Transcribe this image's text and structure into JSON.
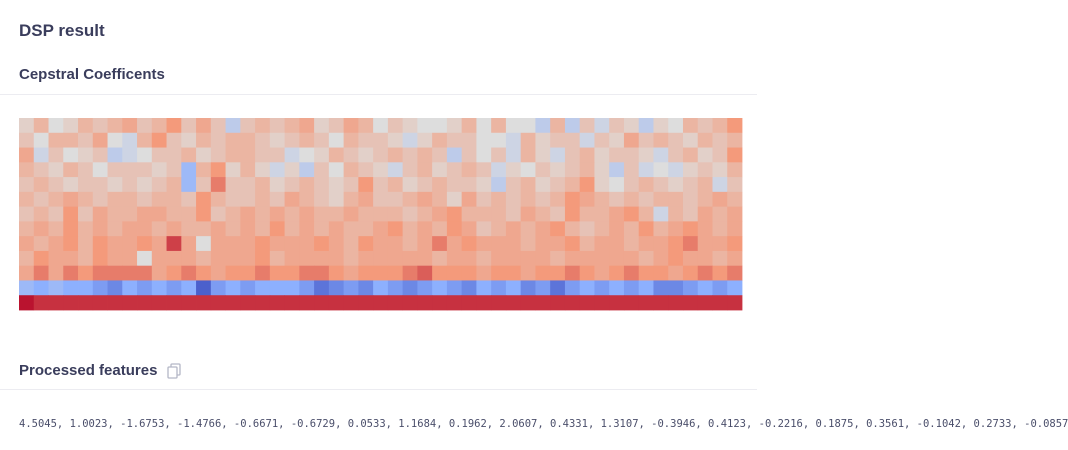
{
  "page": {
    "title": "DSP result"
  },
  "cepstral": {
    "title": "Cepstral Coefficents"
  },
  "features": {
    "title": "Processed features",
    "copy_icon": "copy-icon",
    "values_text": "4.5045, 1.0023, -1.6753, -1.4766, -0.6671, -0.6729, 0.0533, 1.1684, 0.1962, 2.0607, 0.4331, 1.3107, -0.3946, 0.4123, -0.2216, 0.1875, 0.3561, -0.1042, 0.2733, -0.0857"
  },
  "chart_data": {
    "type": "heatmap",
    "colormap": "coolwarm",
    "rows": 13,
    "cols": 49,
    "value_range": [
      -1,
      1
    ],
    "values": [
      [
        0.1,
        0.3,
        0.0,
        0.1,
        0.3,
        0.2,
        0.3,
        0.4,
        0.2,
        0.3,
        0.5,
        0.2,
        0.4,
        0.2,
        -0.2,
        0.2,
        0.3,
        0.2,
        0.3,
        0.4,
        0.1,
        0.2,
        0.4,
        0.3,
        0.0,
        0.2,
        0.1,
        0.0,
        0.0,
        0.1,
        0.3,
        0.0,
        0.3,
        0.0,
        0.0,
        -0.2,
        0.3,
        -0.2,
        0.2,
        -0.1,
        0.2,
        0.1,
        -0.2,
        0.1,
        0.0,
        0.3,
        0.2,
        0.3,
        0.5
      ],
      [
        0.2,
        0.0,
        0.3,
        0.3,
        0.2,
        0.4,
        0.0,
        -0.1,
        0.3,
        0.5,
        0.2,
        0.1,
        0.3,
        0.2,
        0.3,
        0.3,
        0.2,
        0.1,
        0.2,
        0.3,
        0.2,
        0.0,
        0.3,
        0.2,
        0.2,
        0.1,
        -0.1,
        0.1,
        0.3,
        0.2,
        0.2,
        0.0,
        0.0,
        -0.1,
        0.3,
        0.1,
        0.2,
        0.2,
        -0.1,
        0.2,
        0.1,
        0.4,
        0.2,
        0.3,
        0.2,
        0.1,
        0.3,
        0.2,
        0.3
      ],
      [
        0.4,
        -0.1,
        0.2,
        0.0,
        0.1,
        0.2,
        -0.2,
        -0.1,
        0.0,
        0.2,
        0.2,
        0.3,
        0.1,
        0.2,
        0.3,
        0.3,
        0.2,
        0.2,
        -0.1,
        0.0,
        0.1,
        0.3,
        0.2,
        0.1,
        0.2,
        0.3,
        0.2,
        0.3,
        0.2,
        -0.2,
        0.2,
        0.0,
        0.2,
        -0.1,
        0.3,
        0.1,
        -0.1,
        0.2,
        0.3,
        0.1,
        0.2,
        0.2,
        0.1,
        -0.1,
        0.2,
        0.3,
        0.1,
        0.2,
        0.5
      ],
      [
        0.3,
        0.2,
        0.1,
        0.3,
        0.2,
        0.0,
        0.2,
        0.2,
        0.2,
        0.1,
        0.2,
        -0.4,
        0.3,
        0.5,
        0.1,
        0.3,
        0.1,
        -0.1,
        0.1,
        -0.2,
        0.2,
        0.0,
        0.3,
        0.2,
        0.1,
        -0.1,
        0.2,
        0.3,
        0.1,
        0.2,
        0.3,
        0.2,
        -0.1,
        0.1,
        0.0,
        0.2,
        0.1,
        0.2,
        0.3,
        0.1,
        -0.2,
        0.2,
        -0.1,
        0.0,
        -0.1,
        0.1,
        0.2,
        0.1,
        0.3
      ],
      [
        0.2,
        0.3,
        0.2,
        0.1,
        0.2,
        0.2,
        0.1,
        0.2,
        0.1,
        0.2,
        0.3,
        -0.4,
        0.2,
        0.6,
        0.2,
        0.2,
        0.3,
        0.1,
        0.2,
        0.3,
        0.2,
        0.1,
        0.2,
        0.5,
        0.2,
        0.3,
        0.1,
        0.2,
        0.3,
        0.2,
        0.2,
        0.1,
        -0.2,
        0.2,
        0.3,
        0.1,
        0.2,
        0.3,
        0.5,
        0.1,
        0.0,
        0.2,
        0.3,
        0.2,
        0.1,
        0.2,
        0.3,
        -0.1,
        0.2
      ],
      [
        0.3,
        0.2,
        0.3,
        0.4,
        0.3,
        0.2,
        0.3,
        0.3,
        0.2,
        0.3,
        0.3,
        0.2,
        0.5,
        0.3,
        0.2,
        0.2,
        0.3,
        0.2,
        0.4,
        0.3,
        0.2,
        0.1,
        0.3,
        0.4,
        0.2,
        0.2,
        0.3,
        0.4,
        0.3,
        0.1,
        0.4,
        0.2,
        0.3,
        0.2,
        0.3,
        0.2,
        0.3,
        0.5,
        0.4,
        0.3,
        0.2,
        0.3,
        0.2,
        0.3,
        0.3,
        0.2,
        0.3,
        0.4,
        0.3
      ],
      [
        0.2,
        0.3,
        0.2,
        0.5,
        0.2,
        0.4,
        0.3,
        0.3,
        0.4,
        0.4,
        0.3,
        0.3,
        0.5,
        0.2,
        0.3,
        0.4,
        0.3,
        0.4,
        0.3,
        0.4,
        0.3,
        0.3,
        0.4,
        0.3,
        0.3,
        0.3,
        0.2,
        0.3,
        0.4,
        0.5,
        0.3,
        0.3,
        0.3,
        0.2,
        0.4,
        0.3,
        0.2,
        0.5,
        0.3,
        0.3,
        0.4,
        0.5,
        0.3,
        -0.1,
        0.3,
        0.2,
        0.4,
        0.3,
        0.4
      ],
      [
        0.3,
        0.4,
        0.3,
        0.5,
        0.3,
        0.4,
        0.3,
        0.4,
        0.4,
        0.3,
        0.4,
        0.3,
        0.3,
        0.4,
        0.3,
        0.4,
        0.3,
        0.5,
        0.3,
        0.4,
        0.3,
        0.4,
        0.3,
        0.3,
        0.4,
        0.5,
        0.3,
        0.4,
        0.3,
        0.5,
        0.4,
        0.2,
        0.3,
        0.4,
        0.3,
        0.4,
        0.5,
        0.3,
        0.2,
        0.3,
        0.4,
        0.3,
        0.5,
        0.3,
        0.4,
        0.5,
        0.4,
        0.3,
        0.4
      ],
      [
        0.4,
        0.3,
        0.4,
        0.5,
        0.3,
        0.5,
        0.4,
        0.4,
        0.5,
        0.4,
        0.8,
        0.4,
        0.0,
        0.4,
        0.4,
        0.4,
        0.5,
        0.4,
        0.4,
        0.4,
        0.5,
        0.4,
        0.3,
        0.5,
        0.4,
        0.4,
        0.3,
        0.4,
        0.6,
        0.4,
        0.5,
        0.4,
        0.4,
        0.4,
        0.3,
        0.4,
        0.4,
        0.5,
        0.3,
        0.4,
        0.4,
        0.3,
        0.4,
        0.4,
        0.5,
        0.6,
        0.4,
        0.4,
        0.5
      ],
      [
        0.3,
        0.5,
        0.4,
        0.4,
        0.3,
        0.5,
        0.4,
        0.4,
        0.0,
        0.4,
        0.4,
        0.4,
        0.3,
        0.4,
        0.4,
        0.4,
        0.5,
        0.3,
        0.4,
        0.4,
        0.4,
        0.4,
        0.3,
        0.4,
        0.4,
        0.4,
        0.4,
        0.4,
        0.3,
        0.4,
        0.4,
        0.3,
        0.4,
        0.4,
        0.4,
        0.4,
        0.3,
        0.4,
        0.4,
        0.4,
        0.4,
        0.4,
        0.3,
        0.4,
        0.5,
        0.4,
        0.4,
        0.3,
        0.4
      ],
      [
        0.4,
        0.6,
        0.4,
        0.6,
        0.5,
        0.6,
        0.6,
        0.6,
        0.6,
        0.4,
        0.5,
        0.6,
        0.5,
        0.4,
        0.5,
        0.5,
        0.6,
        0.5,
        0.5,
        0.6,
        0.6,
        0.5,
        0.4,
        0.5,
        0.5,
        0.5,
        0.6,
        0.7,
        0.5,
        0.5,
        0.5,
        0.4,
        0.5,
        0.5,
        0.4,
        0.5,
        0.5,
        0.6,
        0.5,
        0.4,
        0.5,
        0.6,
        0.5,
        0.5,
        0.4,
        0.5,
        0.6,
        0.5,
        0.6
      ],
      [
        -0.4,
        -0.5,
        -0.4,
        -0.5,
        -0.5,
        -0.6,
        -0.7,
        -0.5,
        -0.6,
        -0.5,
        -0.6,
        -0.5,
        -0.9,
        -0.6,
        -0.5,
        -0.6,
        -0.5,
        -0.5,
        -0.5,
        -0.6,
        -0.8,
        -0.7,
        -0.6,
        -0.7,
        -0.5,
        -0.6,
        -0.7,
        -0.6,
        -0.5,
        -0.6,
        -0.7,
        -0.5,
        -0.6,
        -0.5,
        -0.7,
        -0.6,
        -0.8,
        -0.6,
        -0.5,
        -0.6,
        -0.5,
        -0.6,
        -0.5,
        -0.7,
        -0.7,
        -0.6,
        -0.5,
        -0.6,
        -0.5
      ],
      [
        0.95,
        0.85,
        0.85,
        0.85,
        0.85,
        0.85,
        0.85,
        0.85,
        0.85,
        0.85,
        0.85,
        0.85,
        0.85,
        0.85,
        0.85,
        0.85,
        0.85,
        0.85,
        0.85,
        0.85,
        0.85,
        0.85,
        0.85,
        0.85,
        0.85,
        0.85,
        0.85,
        0.85,
        0.85,
        0.85,
        0.85,
        0.85,
        0.85,
        0.85,
        0.85,
        0.85,
        0.85,
        0.85,
        0.85,
        0.85,
        0.85,
        0.85,
        0.85,
        0.85,
        0.85,
        0.85,
        0.85,
        0.85,
        0.85
      ]
    ]
  }
}
